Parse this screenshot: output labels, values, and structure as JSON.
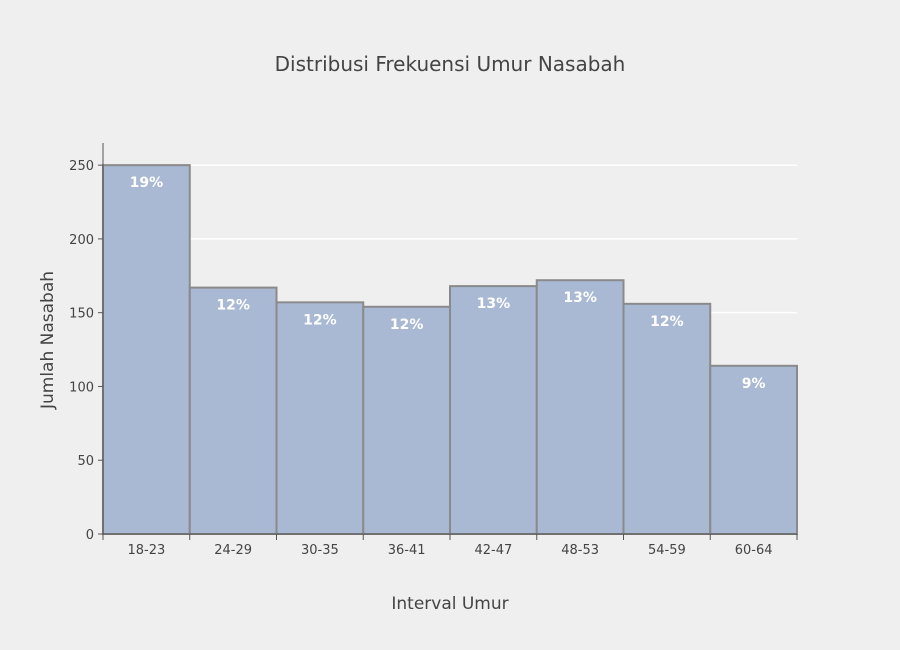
{
  "chart_data": {
    "type": "bar",
    "title": "Distribusi Frekuensi Umur Nasabah",
    "xlabel": "Interval Umur",
    "ylabel": "Jumlah Nasabah",
    "categories": [
      "18-23",
      "24-29",
      "30-35",
      "36-41",
      "42-47",
      "48-53",
      "54-59",
      "60-64"
    ],
    "values": [
      250,
      167,
      157,
      154,
      168,
      172,
      156,
      114
    ],
    "data_labels": [
      "19%",
      "12%",
      "12%",
      "12%",
      "13%",
      "13%",
      "12%",
      "9%"
    ],
    "ylim": [
      0,
      265
    ],
    "yticks": [
      0,
      50,
      100,
      150,
      200,
      250
    ],
    "grid": true,
    "legend": "none",
    "colors": {
      "bar_fill": "#a9b9d3",
      "bar_stroke": "#8a8a8a",
      "background": "#efefef",
      "grid": "#ffffff"
    }
  }
}
